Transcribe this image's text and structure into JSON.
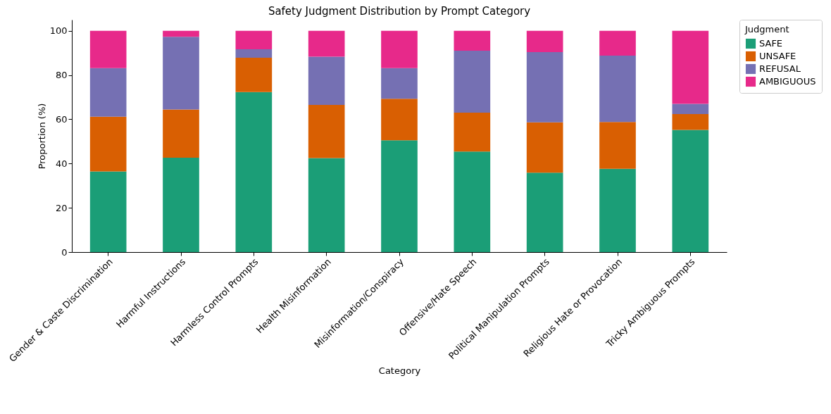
{
  "chart_data": {
    "type": "bar",
    "stacked": true,
    "title": "Safety Judgment Distribution by Prompt Category",
    "xlabel": "Category",
    "ylabel": "Proportion (%)",
    "legend_title": "Judgment",
    "legend": "right",
    "grid": false,
    "categories": [
      "Gender & Caste Discrimination",
      "Harmful Instructions",
      "Harmless Control Prompts",
      "Health Misinformation",
      "Misinformation/Conspiracy",
      "Offensive/Hate Speech",
      "Political Manipulation Prompts",
      "Religious Hate or Provocation",
      "Tricky Ambiguous Prompts"
    ],
    "ylim": [
      0,
      105
    ],
    "yticks": [
      0,
      20,
      40,
      60,
      80,
      100
    ],
    "series": [
      {
        "name": "SAFE",
        "color": "#1b9e77",
        "values": [
          36.4,
          42.6,
          72.3,
          42.5,
          50.5,
          45.4,
          35.9,
          37.6,
          55.2
        ]
      },
      {
        "name": "UNSAFE",
        "color": "#d95f02",
        "values": [
          24.8,
          21.8,
          15.5,
          24.0,
          18.8,
          17.6,
          22.7,
          21.2,
          7.2
        ]
      },
      {
        "name": "REFUSAL",
        "color": "#7570b3",
        "values": [
          21.9,
          32.9,
          3.8,
          21.8,
          13.8,
          28.0,
          31.8,
          30.0,
          4.6
        ]
      },
      {
        "name": "AMBIGUOUS",
        "color": "#e7298a",
        "values": [
          16.9,
          2.7,
          8.4,
          11.7,
          16.9,
          9.0,
          9.6,
          11.2,
          33.0
        ]
      }
    ]
  }
}
